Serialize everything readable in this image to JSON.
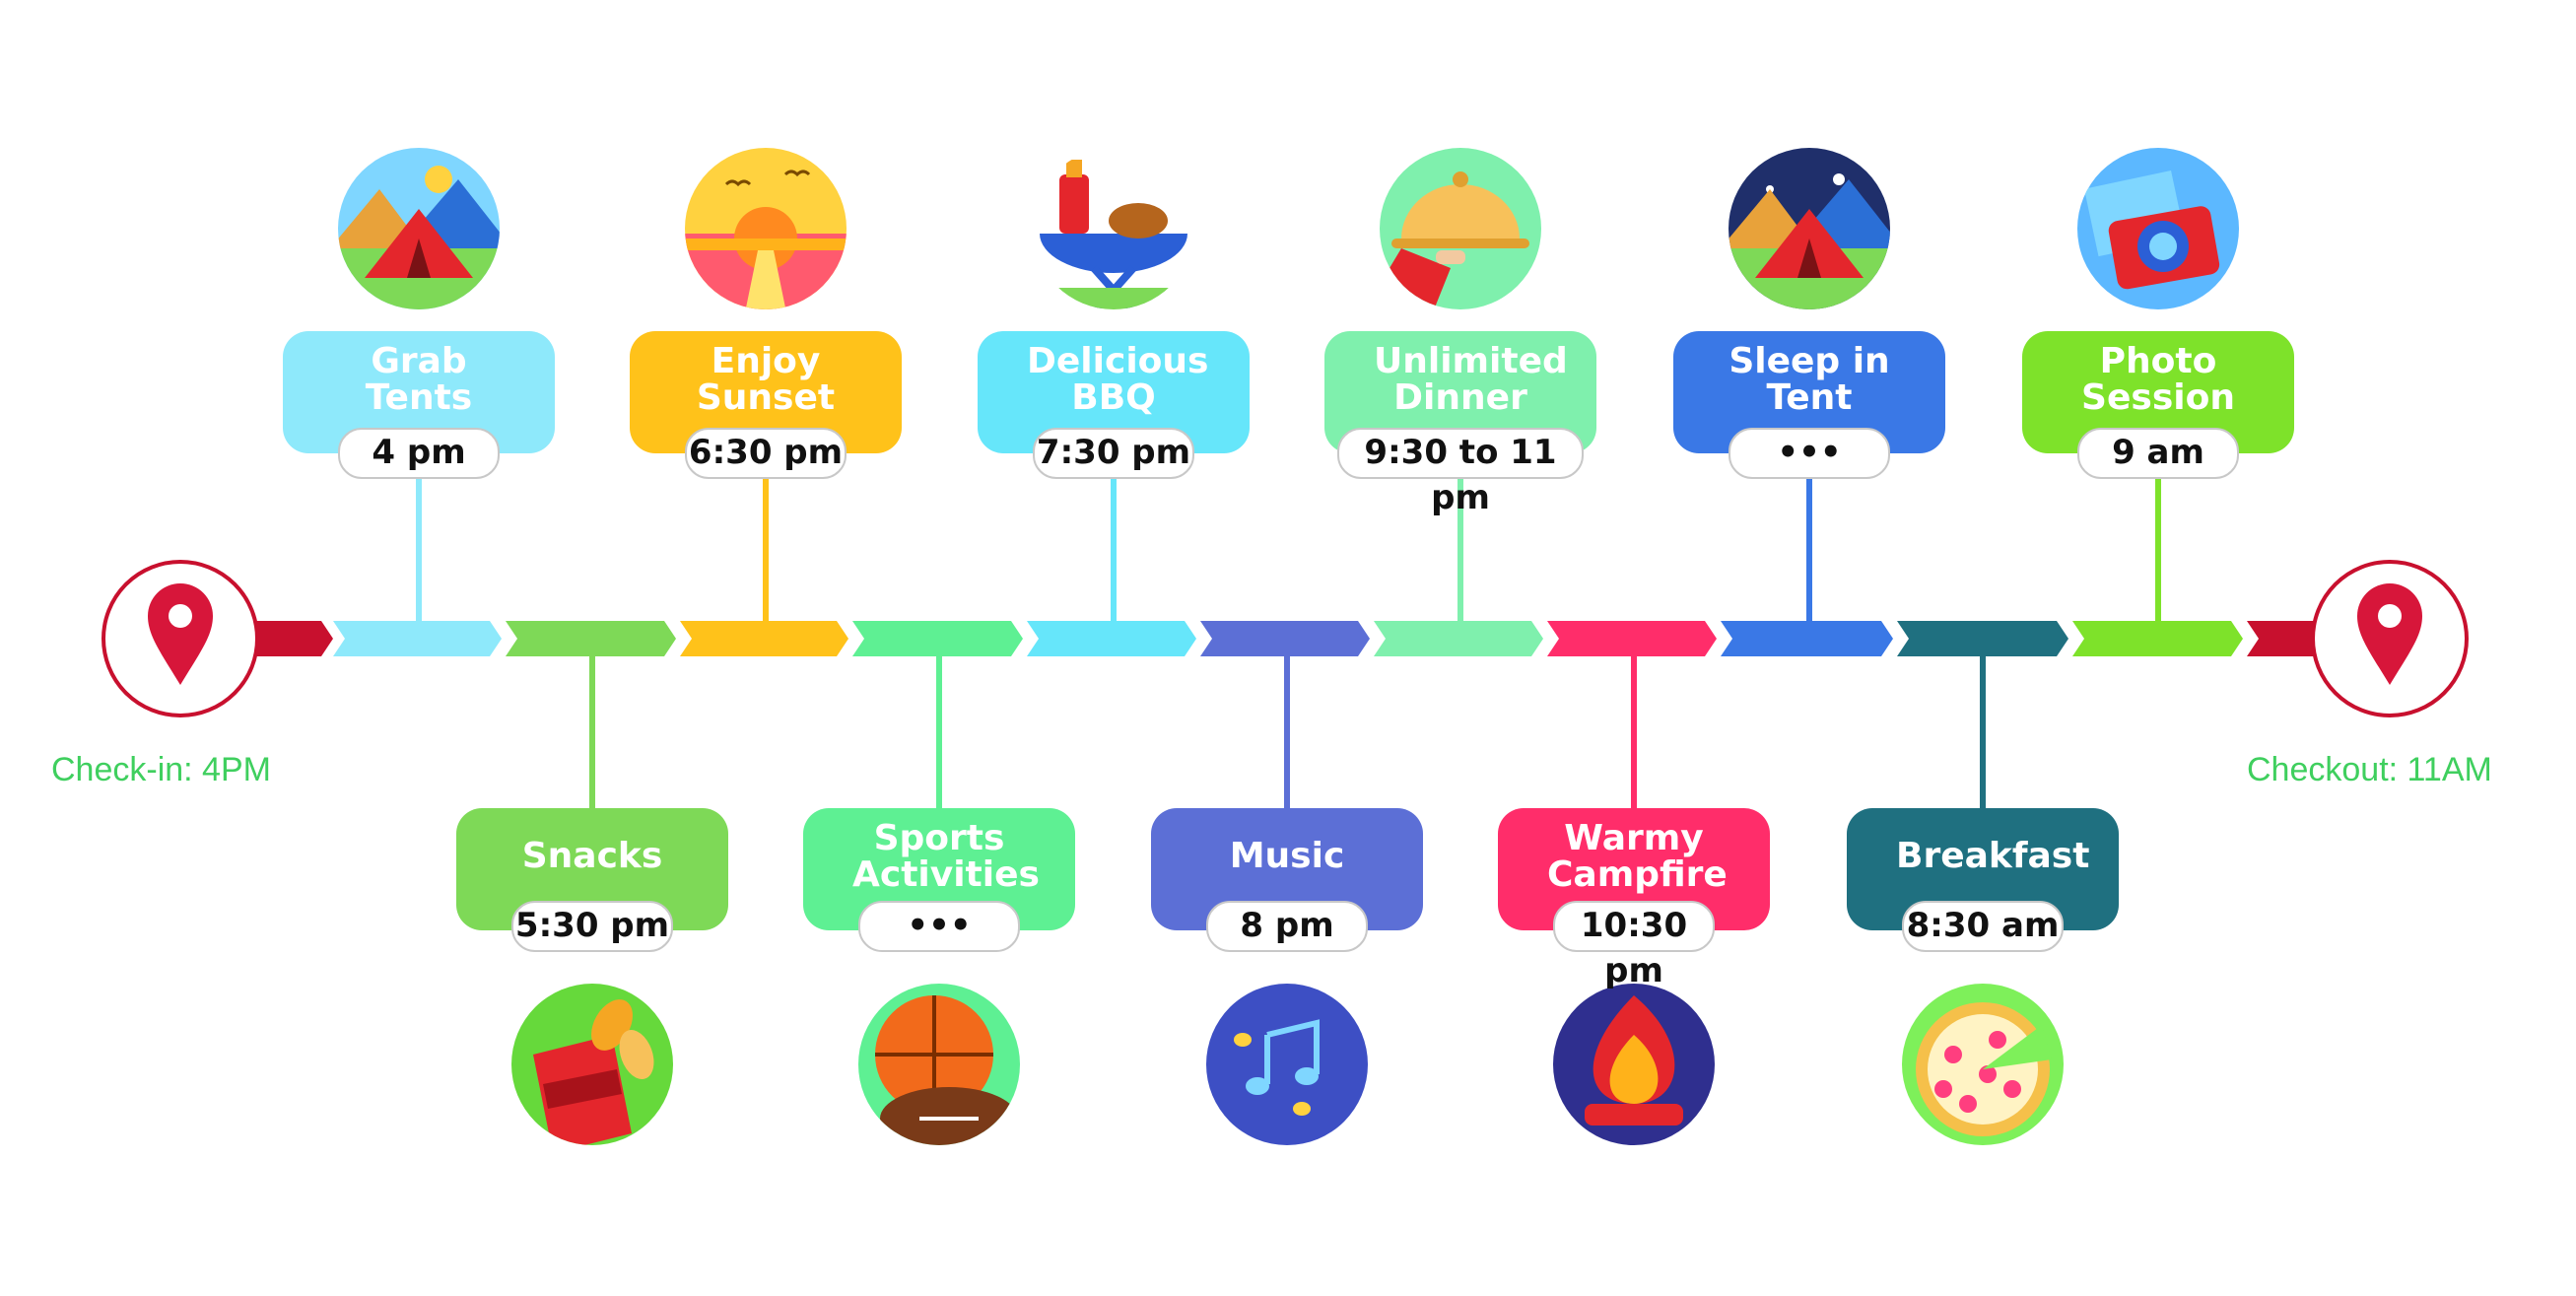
{
  "start_label": "Check-in: 4PM",
  "end_label": "Checkout: 11AM",
  "accent_color": "#c8102e",
  "label_color": "#3fcf5e",
  "segment_colors": [
    "#c8102e",
    "#8ee9fb",
    "#7ed957",
    "#ffc21a",
    "#5ef093",
    "#66e6fa",
    "#5c6fd6",
    "#7ff0ad",
    "#ff2d6a",
    "#3a78e6",
    "#1f7080",
    "#7ee22a",
    "#c8102e"
  ],
  "events": [
    {
      "title": "Grab Tents",
      "time": "4 pm",
      "side": "top",
      "color": "#8ee9fb",
      "icon": "camping-tent-icon"
    },
    {
      "title": "Snacks",
      "time": "5:30 pm",
      "side": "bottom",
      "color": "#7ed957",
      "icon": "chips-snack-icon"
    },
    {
      "title": "Enjoy Sunset",
      "time": "6:30 pm",
      "side": "top",
      "color": "#ffc21a",
      "icon": "sunset-icon"
    },
    {
      "title": "Sports Activities",
      "time": "•••",
      "side": "bottom",
      "color": "#5ef093",
      "icon": "basketball-football-icon"
    },
    {
      "title": "Delicious BBQ",
      "time": "7:30 pm",
      "side": "top",
      "color": "#66e6fa",
      "icon": "bbq-grill-icon"
    },
    {
      "title": "Music",
      "time": "8 pm",
      "side": "bottom",
      "color": "#5c6fd6",
      "icon": "music-notes-icon"
    },
    {
      "title": "Unlimited Dinner",
      "time": "9:30 to 11 pm",
      "side": "top",
      "color": "#7ff0ad",
      "icon": "cloche-dinner-icon"
    },
    {
      "title": "Warmy Campfire",
      "time": "10:30 pm",
      "side": "bottom",
      "color": "#ff2d6a",
      "icon": "campfire-icon"
    },
    {
      "title": "Sleep in Tent",
      "time": "•••",
      "side": "top",
      "color": "#3a78e6",
      "icon": "night-tent-icon"
    },
    {
      "title": "Breakfast",
      "time": "8:30 am",
      "side": "bottom",
      "color": "#1f7080",
      "icon": "pizza-breakfast-icon"
    },
    {
      "title": "Photo Session",
      "time": "9 am",
      "side": "top",
      "color": "#7ee22a",
      "icon": "camera-photo-icon"
    }
  ]
}
